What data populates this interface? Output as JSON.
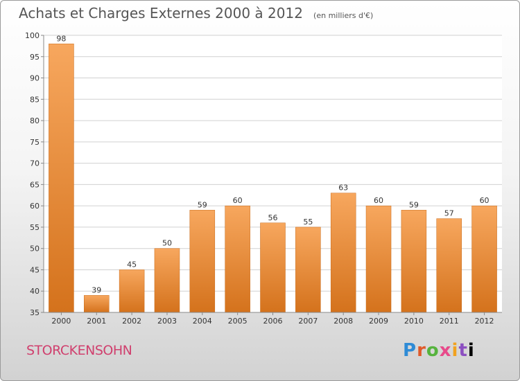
{
  "chart_data": {
    "type": "bar",
    "title": "Achats et Charges Externes 2000 à 2012",
    "subtitle": "(en milliers d'€)",
    "categories": [
      "2000",
      "2001",
      "2002",
      "2003",
      "2004",
      "2005",
      "2006",
      "2007",
      "2008",
      "2009",
      "2010",
      "2011",
      "2012"
    ],
    "values": [
      98,
      39,
      45,
      50,
      59,
      60,
      56,
      55,
      63,
      60,
      59,
      57,
      60
    ],
    "ylim": [
      35,
      100
    ],
    "yticks": [
      35,
      40,
      45,
      50,
      55,
      60,
      65,
      70,
      75,
      80,
      85,
      90,
      95,
      100
    ],
    "xlabel": "",
    "ylabel": "",
    "grid": true,
    "legend": "none",
    "colors": {
      "bar_light": "#f7a35a",
      "bar_dark": "#d97520",
      "grid": "#d0d0d0"
    }
  },
  "footer": {
    "location": "STORCKENSOHN",
    "logo_letters": [
      "P",
      "r",
      "o",
      "x",
      "i",
      "t",
      "i"
    ]
  }
}
